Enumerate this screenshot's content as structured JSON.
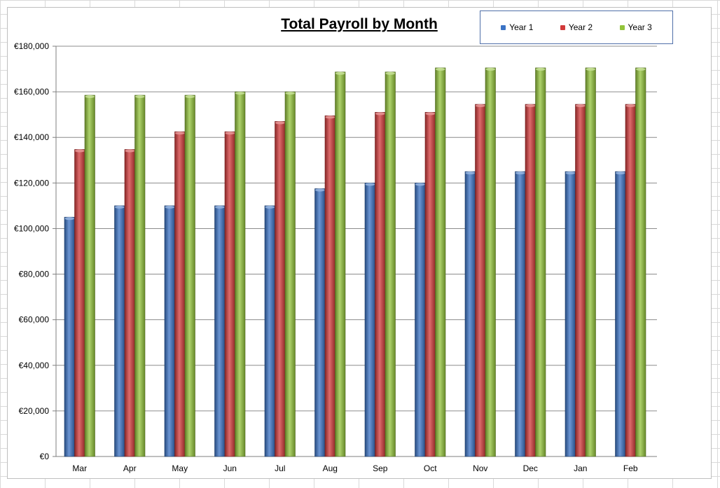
{
  "chart_data": {
    "type": "bar",
    "title": "Total Payroll by Month",
    "xlabel": "",
    "ylabel": "",
    "categories": [
      "Mar",
      "Apr",
      "May",
      "Jun",
      "Jul",
      "Aug",
      "Sep",
      "Oct",
      "Nov",
      "Dec",
      "Jan",
      "Feb"
    ],
    "series": [
      {
        "name": "Year 1",
        "color": "#3b73c5",
        "values": [
          105000,
          110000,
          110000,
          110000,
          110000,
          117500,
          120000,
          120000,
          125000,
          125000,
          125000,
          125000
        ]
      },
      {
        "name": "Year 2",
        "color": "#d23a3a",
        "values": [
          134700,
          134700,
          142500,
          142500,
          147000,
          149500,
          151000,
          151000,
          154500,
          154500,
          154500,
          154500
        ]
      },
      {
        "name": "Year 3",
        "color": "#93c43b",
        "values": [
          158500,
          158500,
          158500,
          160000,
          160000,
          168700,
          168700,
          170500,
          170500,
          170500,
          170500,
          170500
        ]
      }
    ],
    "ylim": [
      0,
      180000
    ],
    "yticks": [
      "€0",
      "€20,000",
      "€40,000",
      "€60,000",
      "€80,000",
      "€100,000",
      "€120,000",
      "€140,000",
      "€160,000",
      "€180,000"
    ],
    "grid": true,
    "legend_position": "top-right"
  }
}
